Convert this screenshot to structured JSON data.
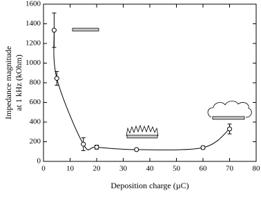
{
  "chart_data": {
    "type": "scatter",
    "xlabel": "Deposition charge (µC)",
    "ylabel": [
      "Impedance magnitude",
      "at 1 kHz (kOhm)"
    ],
    "xlim": [
      0,
      80
    ],
    "xticks": [
      0,
      10,
      20,
      30,
      40,
      50,
      60,
      70,
      80
    ],
    "ylim": [
      0,
      1600
    ],
    "yticks": [
      0,
      200,
      400,
      600,
      800,
      1000,
      1200,
      1400,
      1600
    ],
    "series": [
      {
        "x": [
          4,
          5,
          15,
          20,
          35,
          60,
          70
        ],
        "values": [
          1335,
          845,
          175,
          145,
          120,
          140,
          330
        ],
        "errors": [
          175,
          70,
          65,
          20,
          10,
          15,
          50
        ],
        "color": "#000000"
      }
    ]
  }
}
